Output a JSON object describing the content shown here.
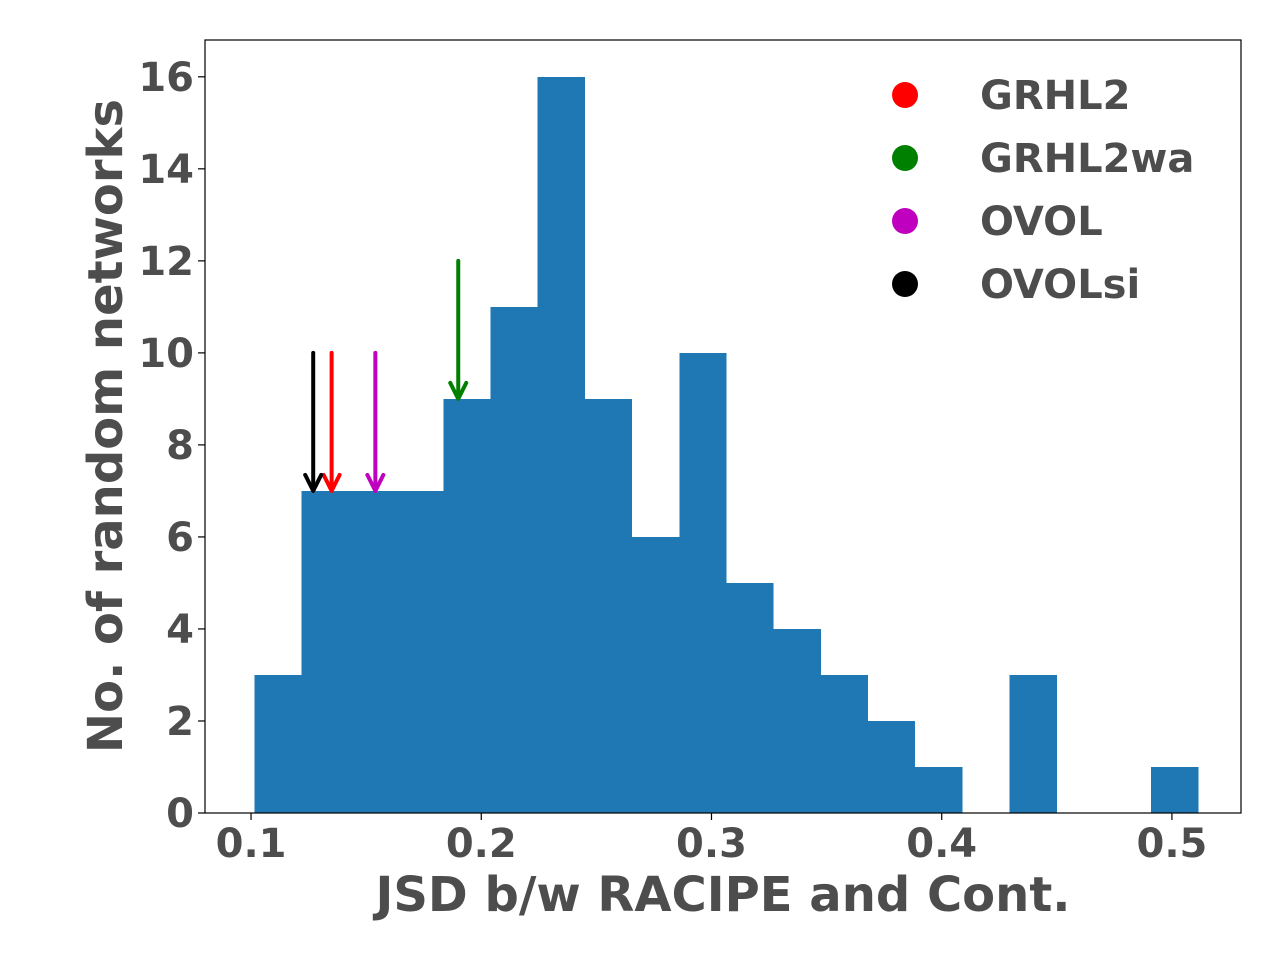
{
  "chart_data": {
    "type": "bar",
    "title": "",
    "xlabel": "JSD b/w RACIPE and Cont.",
    "ylabel": "No. of random networks",
    "xlim": [
      0.08,
      0.53
    ],
    "ylim": [
      0,
      16.8
    ],
    "xticks": [
      0.1,
      0.2,
      0.3,
      0.4,
      0.5
    ],
    "xtick_labels": [
      "0.1",
      "0.2",
      "0.3",
      "0.4",
      "0.5"
    ],
    "yticks": [
      0,
      2,
      4,
      6,
      8,
      10,
      12,
      14,
      16
    ],
    "ytick_labels": [
      "0",
      "2",
      "4",
      "6",
      "8",
      "10",
      "12",
      "14",
      "16"
    ],
    "bar_color": "#1f77b4",
    "bins": {
      "start": 0.1015,
      "width": 0.0205,
      "counts": [
        3,
        7,
        7,
        7,
        9,
        11,
        16,
        9,
        6,
        10,
        5,
        4,
        3,
        2,
        1,
        0,
        3,
        0,
        0,
        1
      ]
    },
    "markers": [
      {
        "name": "GRHL2",
        "color": "#ff0000",
        "x": 0.135,
        "y_top": 10,
        "y_tip": 7
      },
      {
        "name": "GRHL2wa",
        "color": "#008000",
        "x": 0.19,
        "y_top": 12,
        "y_tip": 9
      },
      {
        "name": "OVOL",
        "color": "#bf00bf",
        "x": 0.154,
        "y_top": 10,
        "y_tip": 7
      },
      {
        "name": "OVOLsi",
        "color": "#000000",
        "x": 0.127,
        "y_top": 10,
        "y_tip": 7
      }
    ],
    "legend": {
      "position": "top-right",
      "entries": [
        {
          "label": "GRHL2",
          "color": "#ff0000"
        },
        {
          "label": "GRHL2wa",
          "color": "#008000"
        },
        {
          "label": "OVOL",
          "color": "#bf00bf"
        },
        {
          "label": "OVOLsi",
          "color": "#000000"
        }
      ]
    }
  }
}
